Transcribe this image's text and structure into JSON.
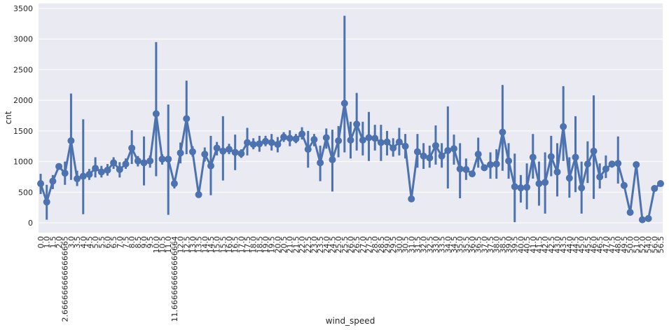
{
  "chart_data": {
    "type": "pointplot",
    "xlabel": "wind_speed",
    "ylabel": "cnt",
    "color": "#4c72b0",
    "grid": true,
    "ylim": [
      -160,
      3580
    ],
    "yticks": [
      0,
      500,
      1000,
      1500,
      2000,
      2500,
      3000,
      3500
    ],
    "categories": [
      "0.0",
      "1.0",
      "1.5",
      "2.0",
      "2.6666666666666665",
      "3.0",
      "3.5",
      "4.0",
      "4.5",
      "5.0",
      "5.5",
      "6.0",
      "6.5",
      "7.0",
      "7.5",
      "8.0",
      "8.5",
      "9.0",
      "9.5",
      "10.0",
      "10.5",
      "11.0",
      "11.666666666666664",
      "12.0",
      "12.5",
      "13.0",
      "13.5",
      "14.0",
      "14.5",
      "15.0",
      "15.5",
      "16.0",
      "16.5",
      "17.0",
      "17.5",
      "18.0",
      "18.5",
      "19.0",
      "19.5",
      "20.0",
      "20.5",
      "21.0",
      "21.5",
      "22.0",
      "22.5",
      "23.0",
      "23.5",
      "24.0",
      "24.5",
      "25.0",
      "25.5",
      "26.0",
      "26.5",
      "27.0",
      "27.5",
      "28.0",
      "28.5",
      "29.0",
      "29.5",
      "30.0",
      "30.5",
      "31.0",
      "31.5",
      "32.0",
      "32.5",
      "33.0",
      "33.5",
      "34.0",
      "34.5",
      "35.0",
      "35.5",
      "36.0",
      "36.5",
      "37.0",
      "37.5",
      "38.0",
      "38.5",
      "39.0",
      "39.5",
      "40.0",
      "40.5",
      "41.0",
      "41.5",
      "42.0",
      "42.5",
      "43.0",
      "43.5",
      "44.0",
      "44.5",
      "45.0",
      "45.5",
      "46.0",
      "46.5",
      "47.0",
      "47.5",
      "48.0",
      "49.5",
      "50.0",
      "51.0",
      "52.0",
      "54.0",
      "56.0",
      "56.5"
    ],
    "values": [
      640,
      340,
      680,
      920,
      810,
      1340,
      720,
      760,
      790,
      890,
      830,
      860,
      980,
      870,
      960,
      1220,
      1010,
      980,
      1010,
      1780,
      1040,
      1040,
      640,
      1140,
      1700,
      1160,
      460,
      1120,
      930,
      1220,
      1170,
      1200,
      1150,
      1130,
      1310,
      1280,
      1290,
      1330,
      1310,
      1280,
      1400,
      1380,
      1370,
      1450,
      1200,
      1360,
      980,
      1390,
      1030,
      1340,
      1950,
      1350,
      1610,
      1350,
      1390,
      1380,
      1310,
      1320,
      1220,
      1320,
      1250,
      390,
      1160,
      1090,
      1060,
      1260,
      1090,
      1180,
      1210,
      880,
      870,
      800,
      1120,
      900,
      950,
      960,
      1480,
      1010,
      590,
      570,
      580,
      1070,
      640,
      660,
      1080,
      830,
      1570,
      730,
      1070,
      570,
      960,
      1170,
      750,
      880,
      960,
      970,
      610,
      170,
      950,
      50,
      70,
      560,
      640
    ],
    "lower": [
      470,
      50,
      550,
      880,
      620,
      700,
      600,
      140,
      700,
      740,
      740,
      770,
      880,
      740,
      880,
      960,
      920,
      610,
      900,
      760,
      950,
      130,
      560,
      970,
      1120,
      1080,
      420,
      1000,
      450,
      1100,
      690,
      1120,
      860,
      1060,
      1100,
      1200,
      1160,
      1250,
      1180,
      1150,
      1320,
      1250,
      1300,
      1360,
      900,
      1250,
      680,
      1210,
      510,
      1070,
      1150,
      1050,
      1180,
      1100,
      1010,
      1180,
      1010,
      1100,
      1080,
      1100,
      1050,
      360,
      900,
      880,
      900,
      950,
      900,
      560,
      950,
      400,
      700,
      770,
      900,
      870,
      720,
      720,
      850,
      720,
      10,
      330,
      220,
      720,
      280,
      150,
      760,
      430,
      1010,
      410,
      500,
      150,
      650,
      390,
      560,
      730,
      900,
      640,
      null,
      null,
      null,
      null,
      null,
      null,
      null
    ],
    "upper": [
      800,
      620,
      780,
      960,
      1000,
      2110,
      850,
      1690,
      880,
      1070,
      930,
      960,
      1070,
      990,
      1050,
      1510,
      1090,
      1410,
      1100,
      2950,
      1120,
      1930,
      720,
      1310,
      2320,
      1250,
      500,
      1230,
      1420,
      1320,
      1740,
      1290,
      1440,
      1200,
      1550,
      1380,
      1420,
      1420,
      1450,
      1400,
      1480,
      1510,
      1450,
      1560,
      1500,
      1450,
      1260,
      1540,
      1520,
      1580,
      3380,
      1650,
      2120,
      1650,
      1810,
      1600,
      1600,
      1500,
      1380,
      1550,
      1450,
      420,
      1450,
      1300,
      1260,
      1590,
      1300,
      1900,
      1440,
      1300,
      1050,
      830,
      1390,
      930,
      1150,
      1200,
      2250,
      1300,
      1130,
      780,
      970,
      1450,
      1000,
      1150,
      1420,
      1300,
      2230,
      1070,
      1740,
      1000,
      1330,
      2080,
      970,
      1100,
      1010,
      1410,
      null,
      null,
      null,
      null,
      null,
      null,
      null
    ]
  }
}
